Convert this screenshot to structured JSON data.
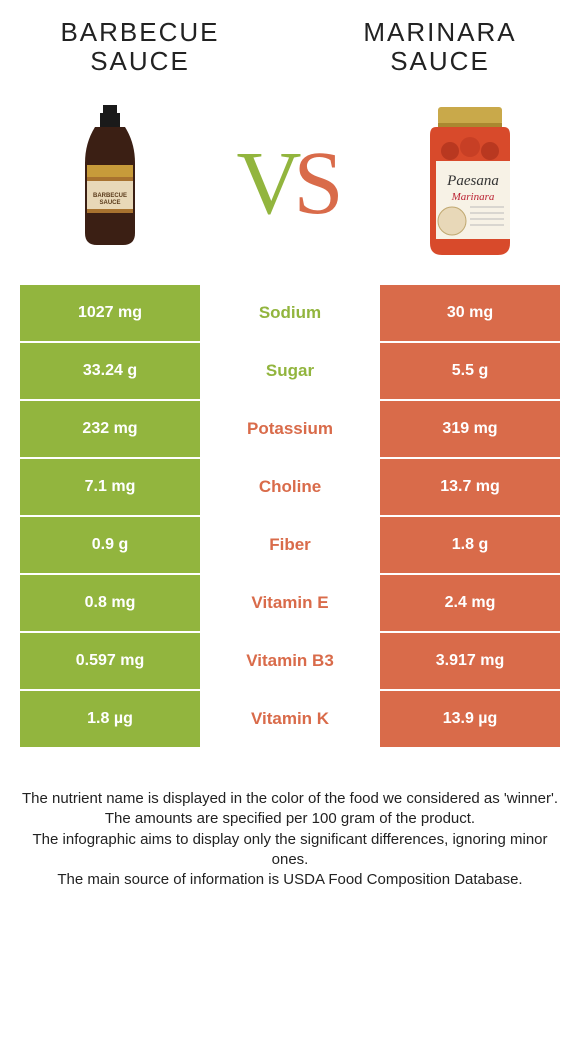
{
  "left": {
    "title_l1": "Barbecue",
    "title_l2": "sauce"
  },
  "right": {
    "title_l1": "Marinara",
    "title_l2": "sauce"
  },
  "vs": {
    "v": "V",
    "s": "S"
  },
  "colors": {
    "left_bg": "#92b53e",
    "right_bg": "#d96b4a",
    "mid_bg": "#ffffff",
    "left_text": "#ffffff",
    "right_text": "#ffffff",
    "left_label": "#92b53e",
    "right_label": "#d96b4a"
  },
  "rows": [
    {
      "left": "1027 mg",
      "label": "Sodium",
      "right": "30 mg",
      "winner": "left"
    },
    {
      "left": "33.24 g",
      "label": "Sugar",
      "right": "5.5 g",
      "winner": "left"
    },
    {
      "left": "232 mg",
      "label": "Potassium",
      "right": "319 mg",
      "winner": "right"
    },
    {
      "left": "7.1 mg",
      "label": "Choline",
      "right": "13.7 mg",
      "winner": "right"
    },
    {
      "left": "0.9 g",
      "label": "Fiber",
      "right": "1.8 g",
      "winner": "right"
    },
    {
      "left": "0.8 mg",
      "label": "Vitamin E",
      "right": "2.4 mg",
      "winner": "right"
    },
    {
      "left": "0.597 mg",
      "label": "Vitamin B3",
      "right": "3.917 mg",
      "winner": "right"
    },
    {
      "left": "1.8 µg",
      "label": "Vitamin K",
      "right": "13.9 µg",
      "winner": "right"
    }
  ],
  "footer": {
    "l1": "The nutrient name is displayed in the color of the food we considered as 'winner'.",
    "l2": "The amounts are specified per 100 gram of the product.",
    "l3": "The infographic aims to display only the significant differences, ignoring minor ones.",
    "l4": "The main source of information is USDA Food Composition Database."
  }
}
